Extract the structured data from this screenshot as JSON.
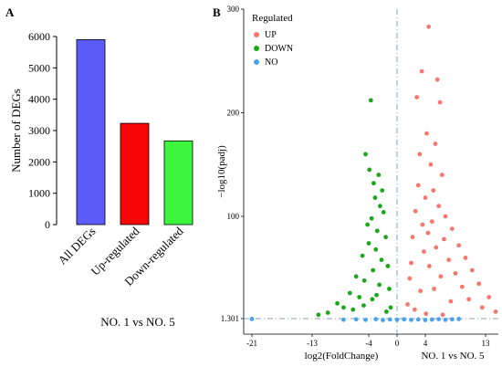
{
  "panel_labels": {
    "a": "A",
    "b": "B"
  },
  "chart_data": [
    {
      "type": "bar",
      "panel": "A",
      "ylabel": "Number of DEGs",
      "xlabel": "NO. 1 vs NO. 5",
      "categories": [
        "All DEGs",
        "Up-regulated",
        "Down-regulated"
      ],
      "values": [
        5900,
        3230,
        2670
      ],
      "colors": [
        "#5b5bf7",
        "#f50505",
        "#3df53d"
      ],
      "ylim": [
        0,
        6000
      ],
      "yticks": [
        0,
        1000,
        2000,
        3000,
        4000,
        5000,
        6000
      ],
      "grid": false
    },
    {
      "type": "scatter",
      "panel": "B",
      "xlabel": "log2(FoldChange)",
      "ylabel": "−log10(padj)",
      "subtitle": "NO. 1 vs NO. 5",
      "xticks": [
        -21,
        -13,
        -4,
        0,
        4,
        13
      ],
      "yticks": [
        1.301,
        100,
        200,
        300
      ],
      "ylim": [
        1.301,
        300
      ],
      "threshold_y": 1.301,
      "threshold_x": 0,
      "legend": {
        "title": "Regulated",
        "placement": "top-left",
        "entries": [
          {
            "label": "UP",
            "color": "#f8766d"
          },
          {
            "label": "DOWN",
            "color": "#1aa81a"
          },
          {
            "label": "NO",
            "color": "#4aa3e8"
          }
        ]
      },
      "series": [
        {
          "name": "UP",
          "color": "#f8766d",
          "points": [
            [
              4.5,
              283
            ],
            [
              3.5,
              240
            ],
            [
              2.8,
              215
            ],
            [
              5.8,
              232
            ],
            [
              6.2,
              210
            ],
            [
              4.2,
              180
            ],
            [
              5.5,
              170
            ],
            [
              3.2,
              160
            ],
            [
              4.8,
              150
            ],
            [
              6.5,
              140
            ],
            [
              3.0,
              130
            ],
            [
              5.2,
              125
            ],
            [
              4.0,
              118
            ],
            [
              6.0,
              110
            ],
            [
              2.6,
              105
            ],
            [
              7.0,
              100
            ],
            [
              5.0,
              95
            ],
            [
              3.6,
              92
            ],
            [
              8.0,
              88
            ],
            [
              4.4,
              84
            ],
            [
              2.2,
              80
            ],
            [
              6.8,
              78
            ],
            [
              9.0,
              72
            ],
            [
              5.6,
              70
            ],
            [
              3.8,
              66
            ],
            [
              10.0,
              60
            ],
            [
              7.5,
              58
            ],
            [
              2.0,
              55
            ],
            [
              4.6,
              52
            ],
            [
              11.0,
              48
            ],
            [
              8.5,
              45
            ],
            [
              6.3,
              42
            ],
            [
              1.8,
              40
            ],
            [
              12.0,
              35
            ],
            [
              9.5,
              32
            ],
            [
              5.3,
              30
            ],
            [
              3.3,
              28
            ],
            [
              13.5,
              22
            ],
            [
              10.5,
              20
            ],
            [
              7.8,
              18
            ],
            [
              1.5,
              15
            ],
            [
              12.5,
              12
            ],
            [
              2.5,
              10
            ],
            [
              14.5,
              8
            ],
            [
              4.1,
              6
            ],
            [
              6.6,
              5
            ]
          ]
        },
        {
          "name": "DOWN",
          "color": "#1aa81a",
          "points": [
            [
              -3.7,
              212
            ],
            [
              -4.5,
              160
            ],
            [
              -3.9,
              145
            ],
            [
              -2.6,
              140
            ],
            [
              -3.3,
              132
            ],
            [
              -2.1,
              125
            ],
            [
              -3.1,
              118
            ],
            [
              -2.4,
              110
            ],
            [
              -1.9,
              104
            ],
            [
              -3.6,
              98
            ],
            [
              -4.2,
              92
            ],
            [
              -2.8,
              86
            ],
            [
              -1.6,
              80
            ],
            [
              -4.0,
              74
            ],
            [
              -3.0,
              68
            ],
            [
              -5.0,
              62
            ],
            [
              -2.2,
              58
            ],
            [
              -1.3,
              52
            ],
            [
              -3.4,
              48
            ],
            [
              -6.0,
              42
            ],
            [
              -4.7,
              38
            ],
            [
              -2.5,
              34
            ],
            [
              -1.1,
              30
            ],
            [
              -7.0,
              26
            ],
            [
              -5.5,
              22
            ],
            [
              -3.5,
              20
            ],
            [
              -9.0,
              16
            ],
            [
              -8.0,
              12
            ],
            [
              -6.5,
              10
            ],
            [
              -1.5,
              8
            ],
            [
              -10.5,
              7
            ],
            [
              -12.0,
              5
            ],
            [
              -4.8,
              14
            ],
            [
              -2.9,
              24
            ],
            [
              -0.9,
              12
            ]
          ]
        },
        {
          "name": "NO",
          "color": "#4aa3e8",
          "points": [
            [
              -21,
              0.3
            ],
            [
              -8,
              0.8
            ],
            [
              -6,
              0.5
            ],
            [
              -4.5,
              0.9
            ],
            [
              -3,
              0.4
            ],
            [
              -2,
              1.0
            ],
            [
              -1,
              0.6
            ],
            [
              0,
              0.8
            ],
            [
              1,
              0.5
            ],
            [
              2,
              0.9
            ],
            [
              3,
              0.6
            ],
            [
              4,
              1.0
            ],
            [
              5,
              0.7
            ],
            [
              6,
              0.4
            ],
            [
              7,
              0.9
            ],
            [
              8,
              0.5
            ],
            [
              9,
              0.3
            ]
          ]
        }
      ]
    }
  ]
}
